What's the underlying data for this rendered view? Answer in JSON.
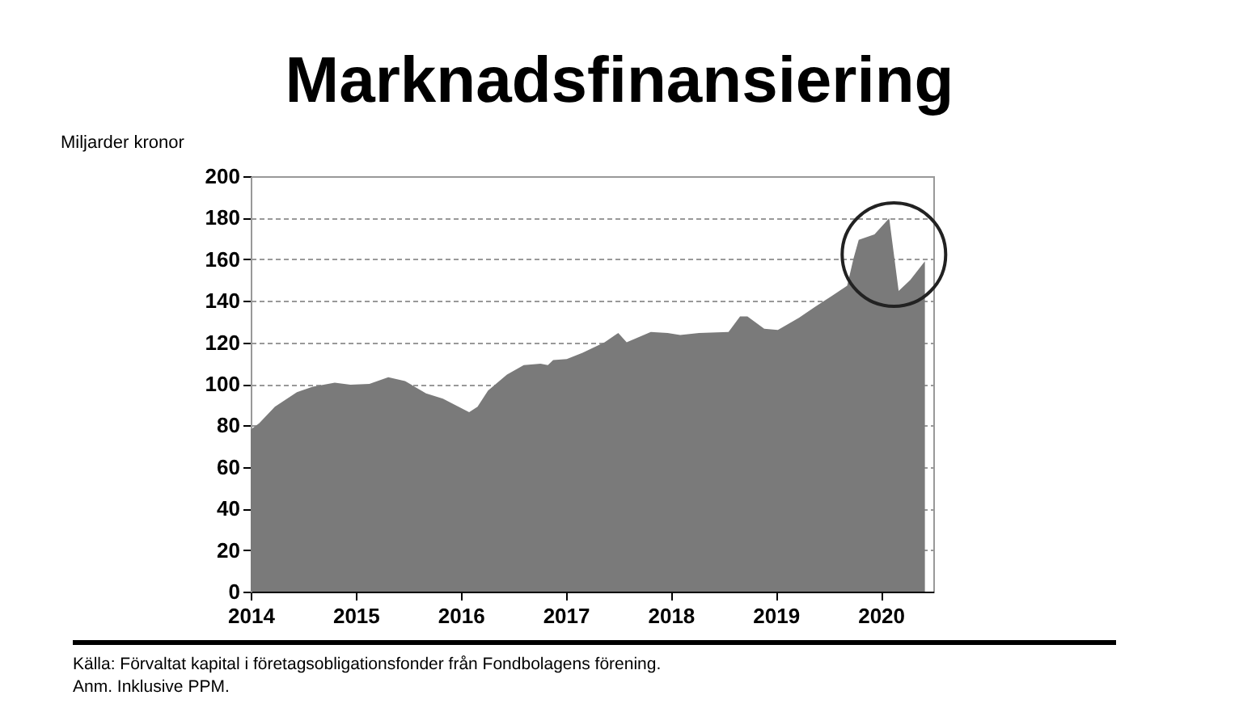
{
  "chart_data": {
    "type": "area",
    "title": "Marknadsfinansiering",
    "ylabel": "Miljarder kronor",
    "annotations": [
      "Källa: Förvaltat kapital i företagsobligationsfonder från Fondbolagens förening.",
      "Anm. Inklusive PPM."
    ],
    "x": [
      2014.0,
      2014.08,
      2014.23,
      2014.44,
      2014.59,
      2014.8,
      2014.95,
      2015.13,
      2015.31,
      2015.47,
      2015.67,
      2015.83,
      2016.08,
      2016.16,
      2016.26,
      2016.44,
      2016.6,
      2016.76,
      2016.83,
      2016.88,
      2017.01,
      2017.16,
      2017.37,
      2017.5,
      2017.58,
      2017.81,
      2017.97,
      2018.09,
      2018.27,
      2018.55,
      2018.66,
      2018.73,
      2018.89,
      2019.02,
      2019.22,
      2019.37,
      2019.53,
      2019.68,
      2019.74,
      2019.79,
      2019.94,
      2020.08,
      2020.17,
      2020.28,
      2020.42
    ],
    "series": [
      {
        "color": "#7a7a7a",
        "values": [
          78,
          81,
          89,
          96,
          98.6,
          100.6,
          99.6,
          100,
          103.2,
          101.4,
          95.4,
          92.9,
          86.4,
          89,
          96.8,
          104.5,
          109,
          109.7,
          109,
          111.5,
          112,
          115,
          120,
          124.5,
          120,
          125,
          124.5,
          123.5,
          124.5,
          125,
          132.5,
          132.5,
          126.6,
          126,
          131.8,
          137,
          142.2,
          147.3,
          160.3,
          169.4,
          172,
          179.8,
          144.7,
          150,
          159
        ]
      }
    ],
    "xlim": [
      2014,
      2020.5
    ],
    "xticks": [
      2014,
      2015,
      2016,
      2017,
      2018,
      2019,
      2020
    ],
    "ylim": [
      0,
      200
    ],
    "yticks": [
      0,
      20,
      40,
      60,
      80,
      100,
      120,
      140,
      160,
      180,
      200
    ],
    "grid": "y"
  }
}
